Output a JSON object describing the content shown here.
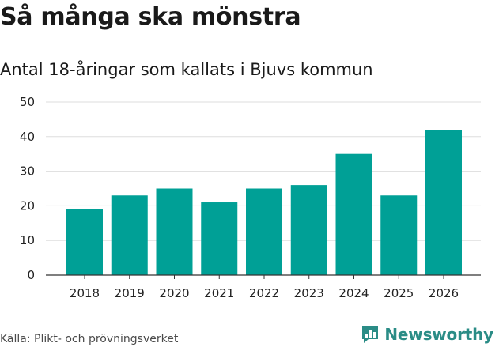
{
  "header": {
    "title": "Så många ska mönstra",
    "subtitle": "Antal 18-åringar som kallats i Bjuvs kommun"
  },
  "footer": {
    "source": "Källa: Plikt- och prövningsverket",
    "brand": "Newsworthy",
    "brand_icon": "chat-bar-chart-icon",
    "brand_color": "#2a8c86"
  },
  "chart_data": {
    "type": "bar",
    "title": "Så många ska mönstra",
    "subtitle": "Antal 18-åringar som kallats i Bjuvs kommun",
    "categories": [
      "2018",
      "2019",
      "2020",
      "2021",
      "2022",
      "2023",
      "2024",
      "2025",
      "2026"
    ],
    "values": [
      19,
      23,
      25,
      21,
      25,
      26,
      35,
      23,
      42
    ],
    "xlabel": "",
    "ylabel": "",
    "ylim": [
      0,
      50
    ],
    "yticks": [
      0,
      10,
      20,
      30,
      40,
      50
    ],
    "grid": true,
    "bar_color": "#00a096"
  }
}
